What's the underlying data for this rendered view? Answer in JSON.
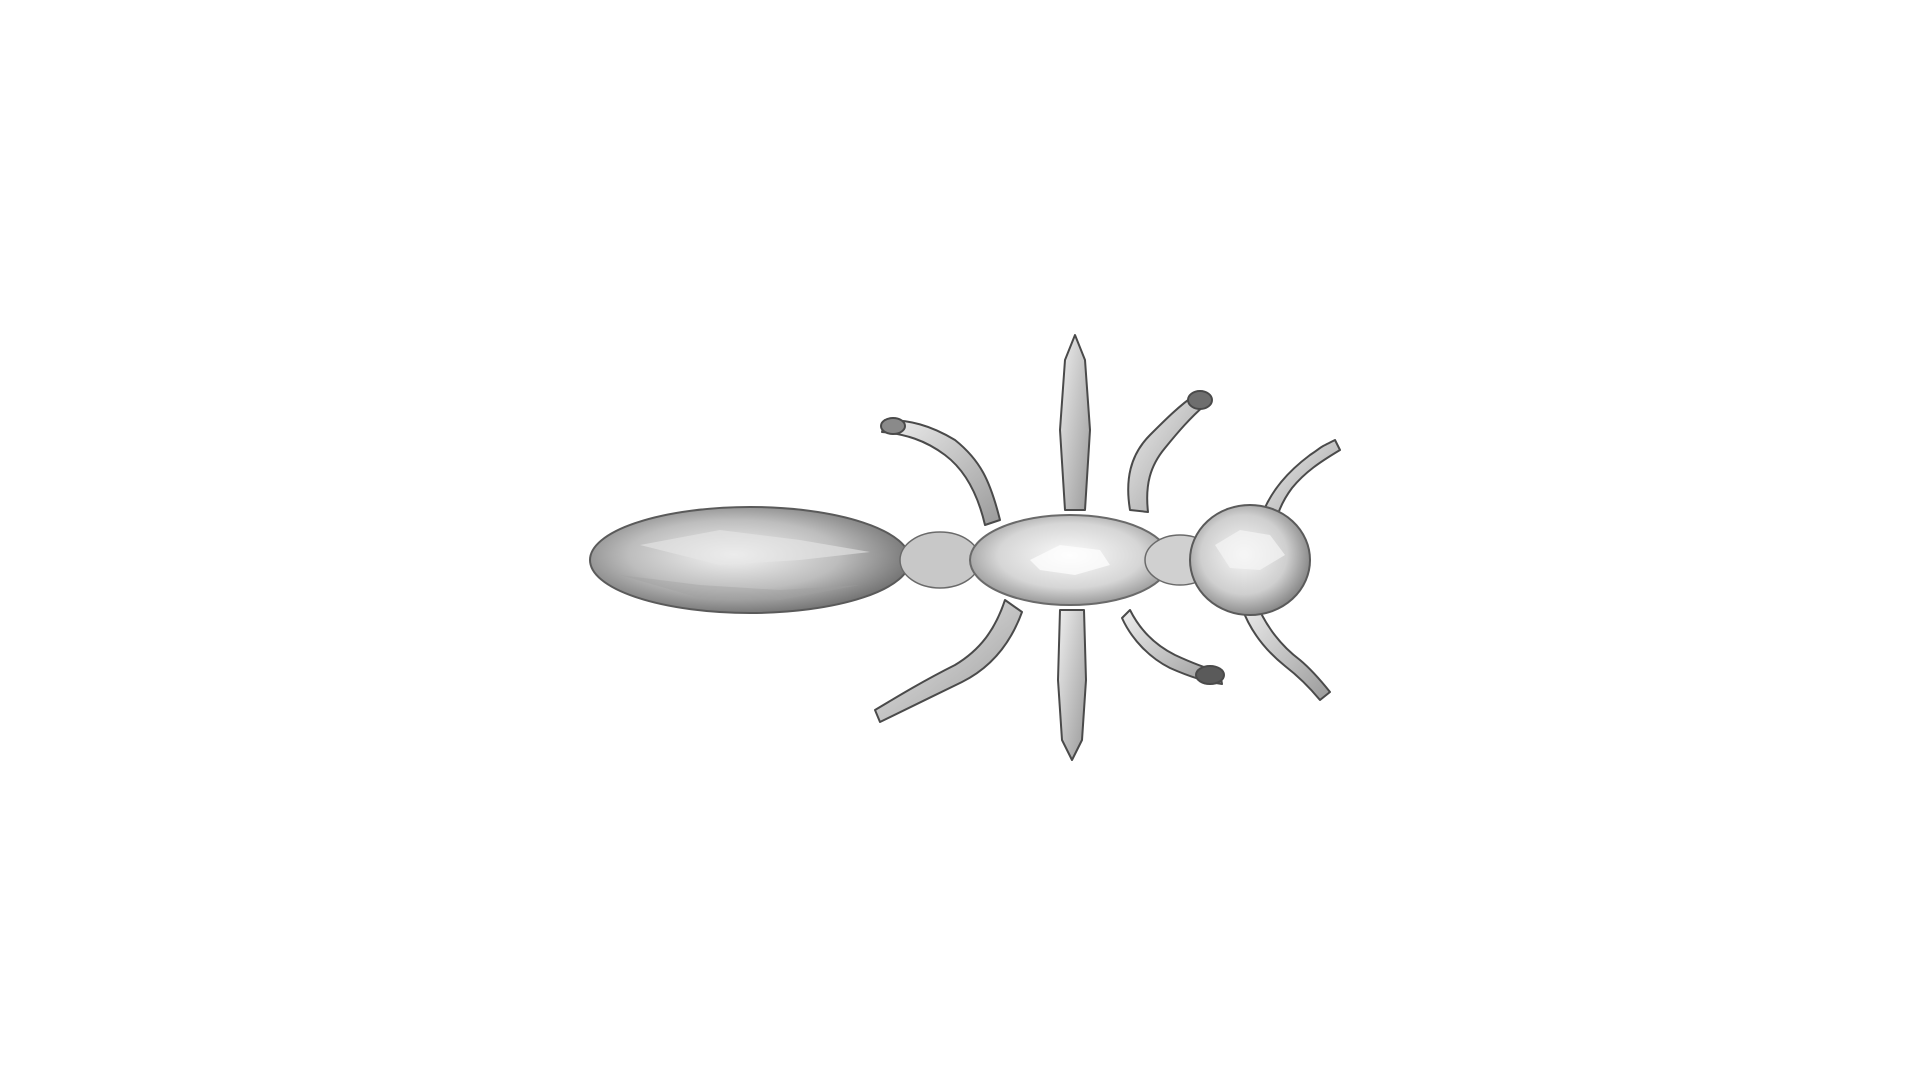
{
  "scene": {
    "background_color": "#ffffff",
    "model_subject": "ant-mesh-top-view",
    "mesh_base_color": "#d9d9d9",
    "mesh_shadow_color": "#6e6e6e",
    "mesh_highlight_color": "#ffffff",
    "mesh_edge_color": "#4a4a4a"
  }
}
